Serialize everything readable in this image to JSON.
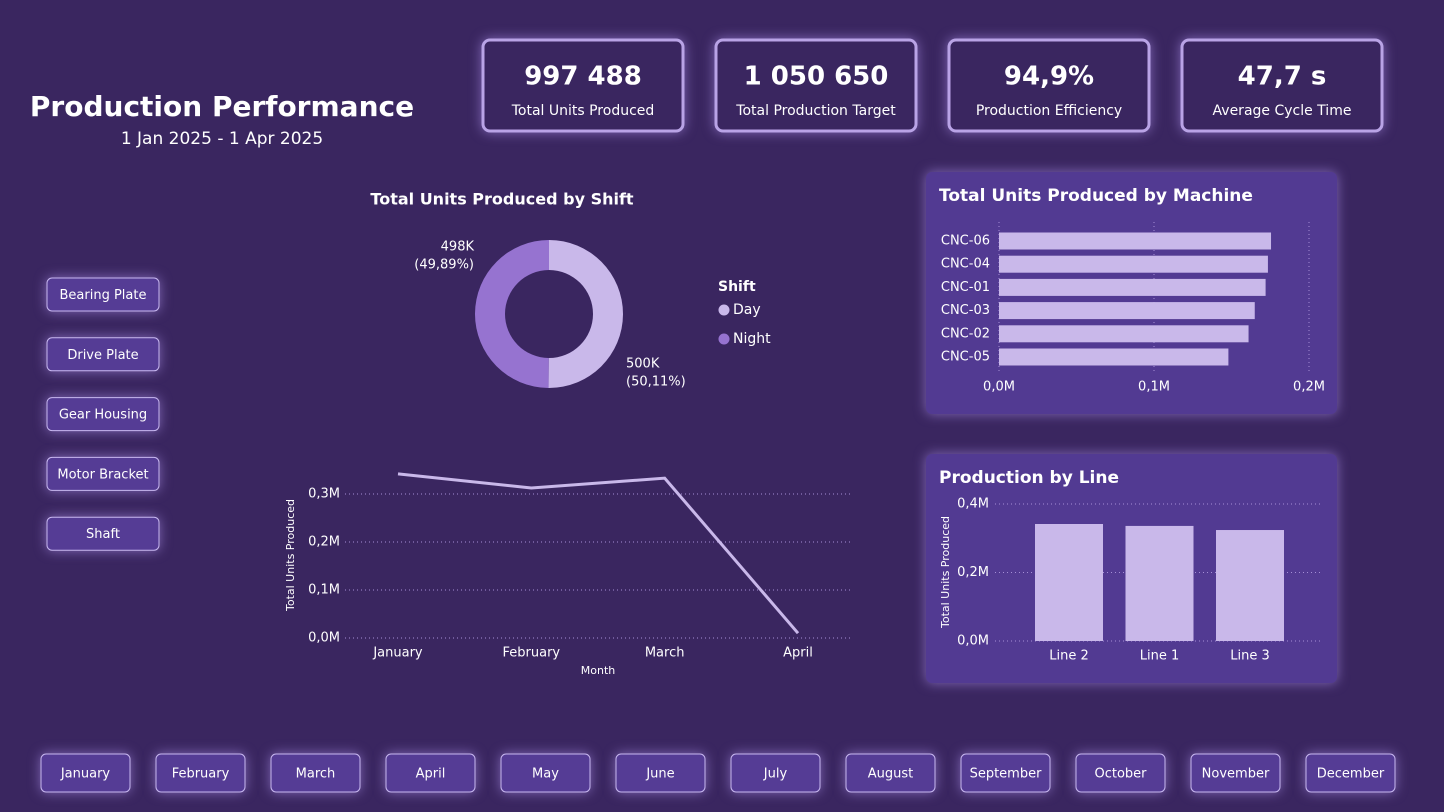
{
  "header": {
    "title": "Production Performance",
    "date_range": "1 Jan 2025 - 1 Apr 2025"
  },
  "kpis": [
    {
      "value": "997 488",
      "label": "Total Units Produced"
    },
    {
      "value": "1 050 650",
      "label": "Total Production Target"
    },
    {
      "value": "94,9%",
      "label": "Production Efficiency"
    },
    {
      "value": "47,7 s",
      "label": "Average Cycle Time"
    }
  ],
  "product_buttons": [
    "Bearing Plate",
    "Drive Plate",
    "Gear Housing",
    "Motor Bracket",
    "Shaft"
  ],
  "month_buttons": [
    "January",
    "February",
    "March",
    "April",
    "May",
    "June",
    "July",
    "August",
    "September",
    "October",
    "November",
    "December"
  ],
  "chart_data": [
    {
      "type": "donut",
      "title": "Total Units Produced by Shift",
      "legend_title": "Shift",
      "categories": [
        "Day",
        "Night"
      ],
      "values": [
        500000,
        498000
      ],
      "value_labels": [
        "500K",
        "498K"
      ],
      "percent_labels": [
        "(50,11%)",
        "(49,89%)"
      ],
      "colors": [
        "#c9b8ea",
        "#9673d0"
      ]
    },
    {
      "type": "hbar",
      "title": "Total Units Produced by Machine",
      "categories": [
        "CNC-06",
        "CNC-04",
        "CNC-01",
        "CNC-03",
        "CNC-02",
        "CNC-05"
      ],
      "values": [
        0.1755,
        0.1735,
        0.172,
        0.165,
        0.161,
        0.148
      ],
      "color": "#c9b8ea",
      "xlim": [
        0,
        0.2
      ],
      "xticks": [
        {
          "value": 0,
          "label": "0,0M"
        },
        {
          "value": 0.1,
          "label": "0,1M"
        },
        {
          "value": 0.2,
          "label": "0,2M"
        }
      ],
      "grid": true
    },
    {
      "type": "line",
      "x_label": "Month",
      "y_label": "Total Units Produced",
      "categories": [
        "January",
        "February",
        "March",
        "April"
      ],
      "values": [
        0.342,
        0.3125,
        0.333,
        0.01
      ],
      "color": "#c9b8ea",
      "ylim": [
        0,
        0.35
      ],
      "yticks": [
        {
          "value": 0,
          "label": "0,0M"
        },
        {
          "value": 0.1,
          "label": "0,1M"
        },
        {
          "value": 0.2,
          "label": "0,2M"
        },
        {
          "value": 0.3,
          "label": "0,3M"
        }
      ],
      "grid": true
    },
    {
      "type": "bar",
      "title": "Production by Line",
      "y_label": "Total Units Produced",
      "categories": [
        "Line 2",
        "Line 1",
        "Line 3"
      ],
      "values": [
        0.3416,
        0.336,
        0.324
      ],
      "color": "#c9b8ea",
      "ylim": [
        0,
        0.4
      ],
      "yticks": [
        {
          "value": 0,
          "label": "0,0M"
        },
        {
          "value": 0.2,
          "label": "0,2M"
        },
        {
          "value": 0.4,
          "label": "0,4M"
        }
      ],
      "grid": true
    }
  ]
}
